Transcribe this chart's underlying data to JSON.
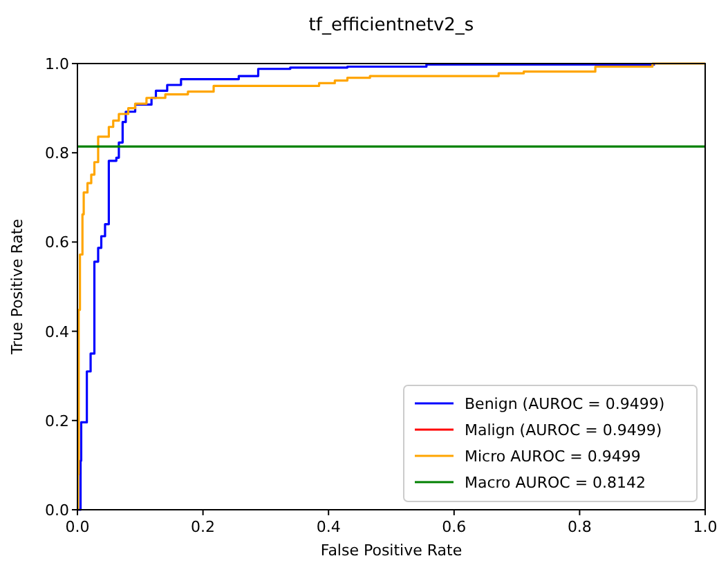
{
  "chart_data": {
    "type": "step",
    "title": "tf_efficientnetv2_s",
    "xlabel": "False Positive Rate",
    "ylabel": "True Positive Rate",
    "xlim": [
      0,
      1
    ],
    "ylim": [
      0,
      1
    ],
    "xticks": [
      {
        "value": 0,
        "label": "0.0"
      },
      {
        "value": 0.2,
        "label": "0.2"
      },
      {
        "value": 0.4,
        "label": "0.4"
      },
      {
        "value": 0.6,
        "label": "0.6"
      },
      {
        "value": 0.8,
        "label": "0.8"
      },
      {
        "value": 1,
        "label": "1.0"
      }
    ],
    "yticks": [
      {
        "value": 0,
        "label": "0.0"
      },
      {
        "value": 0.2,
        "label": "0.2"
      },
      {
        "value": 0.4,
        "label": "0.4"
      },
      {
        "value": 0.6,
        "label": "0.6"
      },
      {
        "value": 0.8,
        "label": "0.8"
      },
      {
        "value": 1,
        "label": "1.0"
      }
    ],
    "grid": false,
    "legend": "bottom right",
    "line_style": "solid",
    "marker": "none",
    "series": [
      {
        "name": "Benign (AUROC = 0.9499)",
        "color": "#0000ff",
        "x": [
          0,
          0.005,
          0.006,
          0.015,
          0.021,
          0.027,
          0.033,
          0.038,
          0.044,
          0.05,
          0.062,
          0.066,
          0.072,
          0.077,
          0.092,
          0.118,
          0.125,
          0.143,
          0.165,
          0.257,
          0.288,
          0.339,
          0.43,
          0.556,
          0.92
        ],
        "values": [
          0,
          0.11,
          0.196,
          0.31,
          0.35,
          0.556,
          0.587,
          0.613,
          0.64,
          0.782,
          0.789,
          0.823,
          0.869,
          0.892,
          0.908,
          0.923,
          0.939,
          0.952,
          0.965,
          0.972,
          0.988,
          0.991,
          0.993,
          0.998,
          0.998
        ]
      },
      {
        "name": "Malign (AUROC = 0.9499)",
        "color": "#ff0000"
      },
      {
        "name": "Micro AUROC = 0.9499",
        "color": "#ffa500",
        "x": [
          0,
          0.001,
          0.002,
          0.004,
          0.008,
          0.01,
          0.016,
          0.022,
          0.027,
          0.033,
          0.05,
          0.057,
          0.066,
          0.081,
          0.092,
          0.11,
          0.14,
          0.176,
          0.217,
          0.385,
          0.41,
          0.43,
          0.466,
          0.671,
          0.711,
          0.825,
          0.916,
          1
        ],
        "values": [
          0,
          0.08,
          0.448,
          0.572,
          0.662,
          0.711,
          0.732,
          0.751,
          0.779,
          0.836,
          0.858,
          0.872,
          0.887,
          0.9,
          0.91,
          0.923,
          0.931,
          0.937,
          0.95,
          0.956,
          0.962,
          0.968,
          0.972,
          0.978,
          0.982,
          0.993,
          1,
          1
        ]
      },
      {
        "name": "Macro AUROC = 0.8142",
        "color": "#008000",
        "type": "line",
        "x": [
          0,
          1
        ],
        "values": [
          0.814,
          0.814
        ]
      }
    ]
  }
}
